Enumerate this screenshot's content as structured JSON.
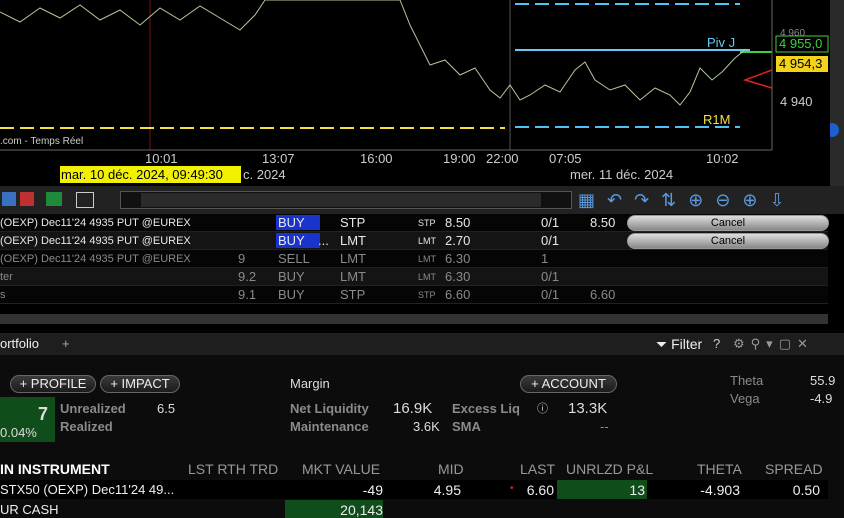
{
  "chart": {
    "price_labels": [
      "4 960",
      "4 955,0",
      "4 954,3",
      "4 940"
    ],
    "level_labels": [
      "Piv J",
      "R1M"
    ],
    "source": ".com - Temps Réel",
    "time_labels": [
      "10:01",
      "13:07",
      "16:00",
      "19:00",
      "22:00",
      "07:05",
      "10:02"
    ],
    "cursor_date": "mar. 10 déc. 2024, 09:49:30",
    "date_labels": [
      "c. 2024",
      "mer. 11 déc. 2024"
    ]
  },
  "orders": {
    "rows": [
      [
        "(OEXP) Dec11'24 4935 PUT @EUREX",
        "",
        "BUY",
        "STP",
        "STP",
        "8.50",
        "0/1",
        "8.50",
        "Cancel"
      ],
      [
        "(OEXP) Dec11'24 4935 PUT @EUREX",
        "",
        "BUY",
        "LMT",
        "LMT",
        "2.70",
        "0/1",
        "",
        "Cancel"
      ],
      [
        "(OEXP) Dec11'24 4935 PUT @EUREX",
        "9",
        "SELL",
        "LMT",
        "LMT",
        "6.30",
        "1",
        "",
        ""
      ],
      [
        "ter",
        "9.2",
        "BUY",
        "LMT",
        "LMT",
        "6.30",
        "0/1",
        "",
        ""
      ],
      [
        "s",
        "9.1",
        "BUY",
        "STP",
        "STP",
        "6.60",
        "0/1",
        "6.60",
        ""
      ]
    ],
    "ellipsis": "..."
  },
  "portfolio": {
    "tab": "ortfolio",
    "add_tab": "+",
    "filter": "Filter",
    "help": "?",
    "buttons": [
      "PROFILE",
      "IMPACT",
      "ACCOUNT"
    ],
    "plus": "+",
    "pnl_value": "7",
    "pnl_pct": "0.04%",
    "unrealized_label": "Unrealized",
    "unrealized_value": "6.5",
    "realized_label": "Realized",
    "margin_title": "Margin",
    "net_liq_label": "Net Liquidity",
    "net_liq_value": "16.9K",
    "excess_liq_label": "Excess Liq",
    "excess_liq_value": "13.3K",
    "maintenance_label": "Maintenance",
    "maintenance_value": "3.6K",
    "sma_label": "SMA",
    "sma_value": "--",
    "theta_label": "Theta",
    "theta_value": "55.9",
    "vega_label": "Vega",
    "vega_value": "-4.9",
    "headers": [
      "IN INSTRUMENT",
      "LST RTH TRD",
      "MKT VALUE",
      "MID",
      "LAST",
      "UNRLZD P&L",
      "THETA",
      "SPREAD"
    ],
    "rows": [
      [
        "STX50 (OEXP) Dec11'24 49...",
        "",
        "-49",
        "4.95",
        "6.60",
        "13",
        "-4.903",
        "0.50"
      ],
      [
        "UR CASH",
        "",
        "20,143",
        "",
        "",
        "",
        "",
        ""
      ]
    ]
  }
}
